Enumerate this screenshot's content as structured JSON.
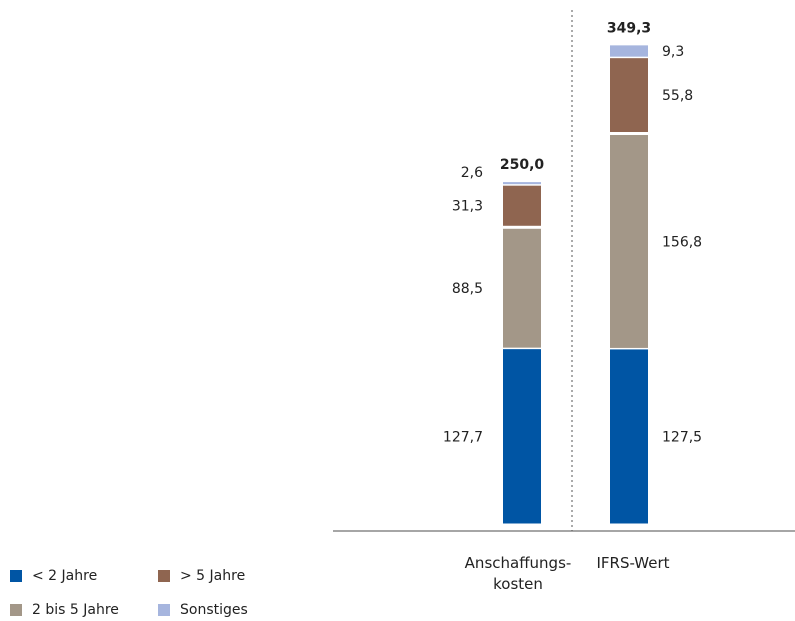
{
  "chart_data": {
    "type": "bar",
    "stacked": true,
    "categories": [
      "Anschaffungs-\nkosten",
      "IFRS-Wert"
    ],
    "series": [
      {
        "name": "< 2 Jahre",
        "color": "#0055a4",
        "values": [
          127.7,
          127.5
        ],
        "labels": [
          "127,7",
          "127,5"
        ]
      },
      {
        "name": "2 bis 5 Jahre",
        "color": "#a39788",
        "values": [
          88.5,
          156.8
        ],
        "labels": [
          "88,5",
          "156,8"
        ]
      },
      {
        "name": "> 5 Jahre",
        "color": "#8f6550",
        "values": [
          31.3,
          55.8
        ],
        "labels": [
          "31,3",
          "55,8"
        ]
      },
      {
        "name": "Sonstiges",
        "color": "#a6b5de",
        "values": [
          2.6,
          9.3
        ],
        "labels": [
          "2,6",
          "9,3"
        ]
      }
    ],
    "totals": [
      250.0,
      349.3
    ],
    "total_labels": [
      "250,0",
      "349,3"
    ],
    "grid": false,
    "legend_position": "bottom-left"
  },
  "legend": {
    "items": [
      {
        "label": "< 2 Jahre",
        "color": "#0055a4"
      },
      {
        "label": "> 5 Jahre",
        "color": "#8f6550"
      },
      {
        "label": "2 bis 5 Jahre",
        "color": "#a39788"
      },
      {
        "label": "Sonstiges",
        "color": "#a6b5de"
      }
    ]
  }
}
